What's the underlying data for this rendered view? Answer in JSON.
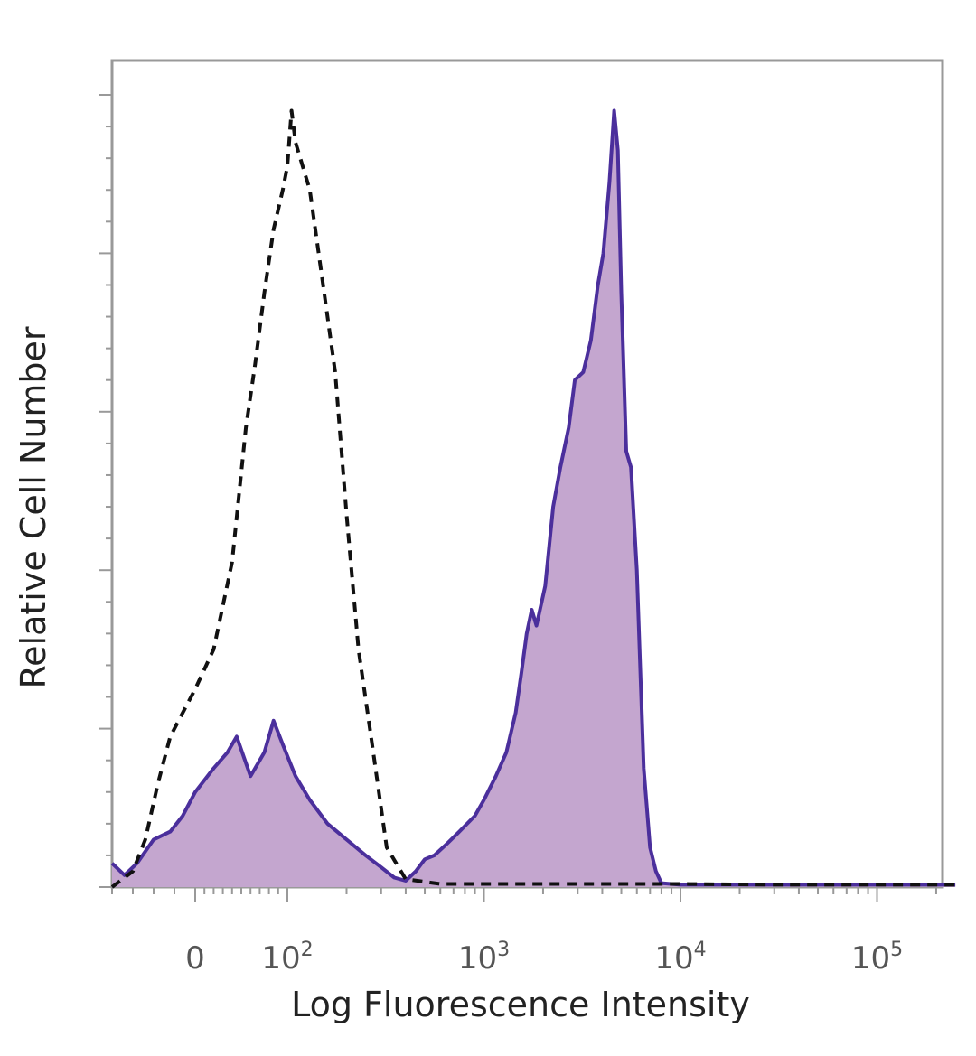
{
  "chart_data": {
    "type": "area",
    "xlabel": "Log Fluorescence Intensity",
    "ylabel": "Relative Cell Number",
    "x_scale": "biexponential (log above 10^2)",
    "x_ticks": [
      {
        "value": 0,
        "base": "0",
        "exp": ""
      },
      {
        "value": 100,
        "base": "10",
        "exp": "2"
      },
      {
        "value": 1000,
        "base": "10",
        "exp": "3"
      },
      {
        "value": 10000,
        "base": "10",
        "exp": "4"
      },
      {
        "value": 100000,
        "base": "10",
        "exp": "5"
      }
    ],
    "xlim": [
      -200,
      250000
    ],
    "ylim": [
      0,
      100
    ],
    "grid": false,
    "series": [
      {
        "style": "dashed-outline",
        "color": "#111111",
        "points": [
          [
            -200,
            0
          ],
          [
            -150,
            2
          ],
          [
            -120,
            6
          ],
          [
            -90,
            13
          ],
          [
            -60,
            19
          ],
          [
            -30,
            22
          ],
          [
            0,
            25
          ],
          [
            20,
            30
          ],
          [
            40,
            41
          ],
          [
            55,
            58
          ],
          [
            65,
            66
          ],
          [
            75,
            75
          ],
          [
            85,
            83
          ],
          [
            95,
            88
          ],
          [
            100,
            91
          ],
          [
            105,
            98
          ],
          [
            110,
            94
          ],
          [
            130,
            88
          ],
          [
            150,
            77
          ],
          [
            175,
            65
          ],
          [
            200,
            47
          ],
          [
            230,
            30
          ],
          [
            270,
            18
          ],
          [
            320,
            5
          ],
          [
            400,
            1
          ],
          [
            600,
            0.4
          ],
          [
            1000,
            0.4
          ],
          [
            3000,
            0.4
          ],
          [
            10000,
            0.4
          ],
          [
            30000,
            0.3
          ],
          [
            250000,
            0.3
          ]
        ]
      },
      {
        "style": "filled",
        "color": "#4b2f9c",
        "fill": "#c4a6cf",
        "points": [
          [
            -200,
            3
          ],
          [
            -170,
            1.5
          ],
          [
            -140,
            3
          ],
          [
            -100,
            6
          ],
          [
            -60,
            7
          ],
          [
            -30,
            9
          ],
          [
            0,
            12
          ],
          [
            20,
            15
          ],
          [
            35,
            17
          ],
          [
            45,
            19
          ],
          [
            60,
            14
          ],
          [
            75,
            17
          ],
          [
            85,
            21
          ],
          [
            95,
            18
          ],
          [
            110,
            14
          ],
          [
            130,
            11
          ],
          [
            160,
            8
          ],
          [
            200,
            6
          ],
          [
            250,
            4
          ],
          [
            300,
            2.5
          ],
          [
            350,
            1.2
          ],
          [
            400,
            0.8
          ],
          [
            450,
            2
          ],
          [
            500,
            3.5
          ],
          [
            560,
            4
          ],
          [
            650,
            5.5
          ],
          [
            750,
            7
          ],
          [
            900,
            9
          ],
          [
            1000,
            11
          ],
          [
            1150,
            14
          ],
          [
            1300,
            17
          ],
          [
            1450,
            22
          ],
          [
            1550,
            27
          ],
          [
            1650,
            32
          ],
          [
            1750,
            35
          ],
          [
            1850,
            33
          ],
          [
            2050,
            38
          ],
          [
            2250,
            48
          ],
          [
            2450,
            53
          ],
          [
            2700,
            58
          ],
          [
            2900,
            64
          ],
          [
            3200,
            65
          ],
          [
            3500,
            69
          ],
          [
            3800,
            76
          ],
          [
            4050,
            80
          ],
          [
            4350,
            89
          ],
          [
            4600,
            98
          ],
          [
            4800,
            93
          ],
          [
            5000,
            75
          ],
          [
            5300,
            55
          ],
          [
            5600,
            53
          ],
          [
            6000,
            40
          ],
          [
            6500,
            15
          ],
          [
            7000,
            5
          ],
          [
            7500,
            2
          ],
          [
            8000,
            0.5
          ],
          [
            10000,
            0.3
          ],
          [
            30000,
            0.3
          ],
          [
            250000,
            0.3
          ]
        ]
      }
    ]
  },
  "colors": {
    "frame": "#999999",
    "fill": "#c4a6cf",
    "stained_line": "#4b2f9c",
    "control_line": "#111111"
  }
}
